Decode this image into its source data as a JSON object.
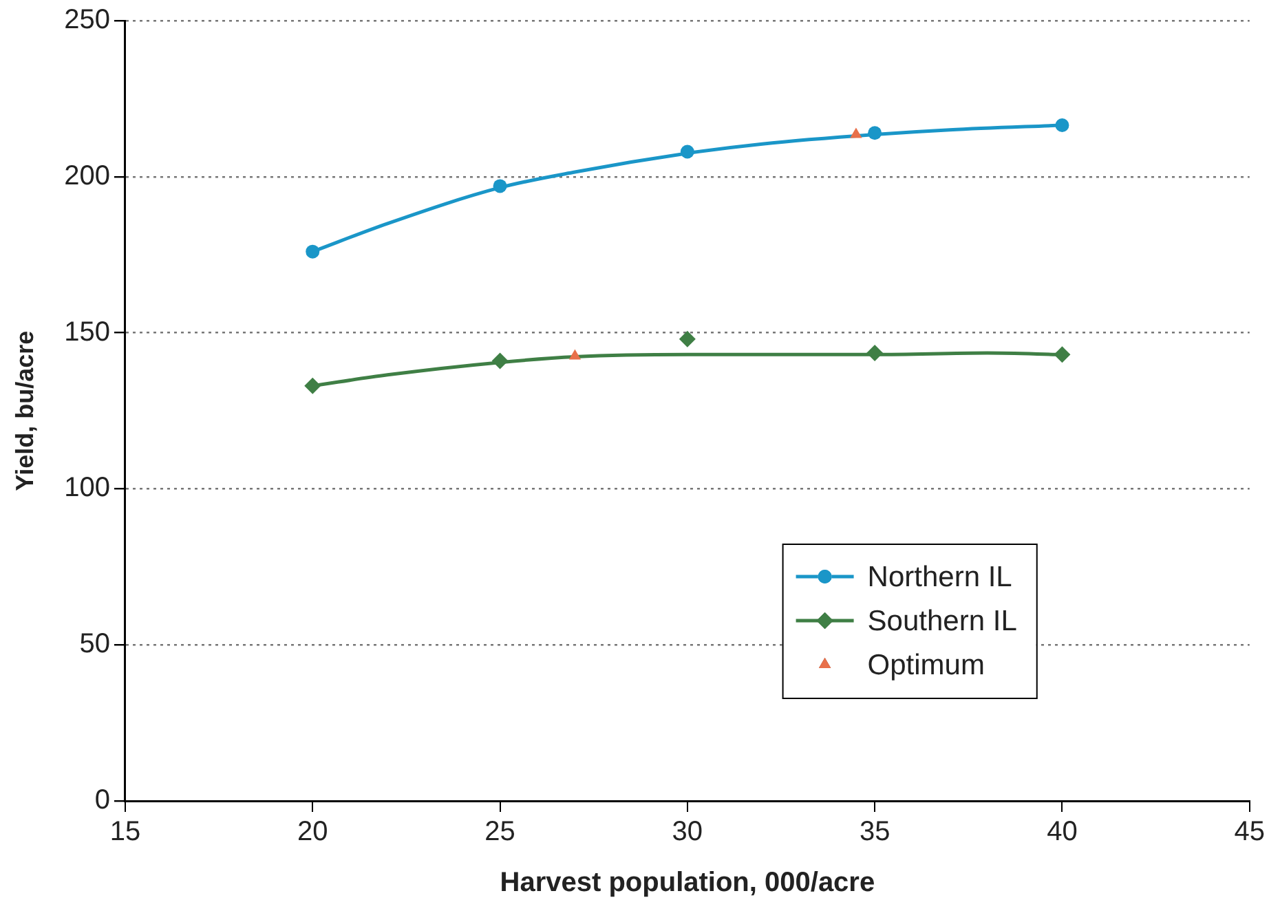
{
  "chart_data": {
    "type": "scatter",
    "xlabel": "Harvest population, 000/acre",
    "ylabel": "Yield, bu/acre",
    "xlim": [
      15,
      45
    ],
    "xticks": [
      15,
      20,
      25,
      30,
      35,
      40,
      45
    ],
    "ylim": [
      0,
      250
    ],
    "yticks": [
      0,
      50,
      100,
      150,
      200,
      250
    ],
    "grid": "y",
    "legend": "bottom right",
    "series": [
      {
        "type": "line",
        "marker": "none",
        "color": "#1a96c8",
        "x": [
          20,
          22,
          25,
          27,
          30,
          32,
          35,
          37,
          40
        ],
        "values": [
          176,
          185,
          196.5,
          201.5,
          207.5,
          210.5,
          213.5,
          215,
          216.5
        ]
      },
      {
        "type": "line",
        "marker": "none",
        "color": "#3f7f45",
        "x": [
          20,
          22,
          25,
          27,
          30,
          35,
          38,
          40
        ],
        "values": [
          133,
          136.5,
          140.5,
          142.3,
          143,
          143,
          143.5,
          143
        ]
      },
      {
        "name": "Northern IL",
        "type": "scatter",
        "marker": "circle",
        "color": "#1a96c8",
        "x": [
          20,
          25,
          30,
          35,
          40
        ],
        "values": [
          176,
          197,
          208,
          214,
          216.5
        ]
      },
      {
        "name": "Southern IL",
        "type": "scatter",
        "marker": "diamond",
        "color": "#3f7f45",
        "x": [
          20,
          25,
          30,
          35,
          40
        ],
        "values": [
          133,
          141,
          148,
          143.5,
          143
        ]
      },
      {
        "name": "Optimum",
        "type": "scatter",
        "marker": "triangle",
        "color": "#e8704a",
        "x": [
          34.5,
          27
        ],
        "values": [
          213.5,
          142.5
        ]
      }
    ]
  }
}
